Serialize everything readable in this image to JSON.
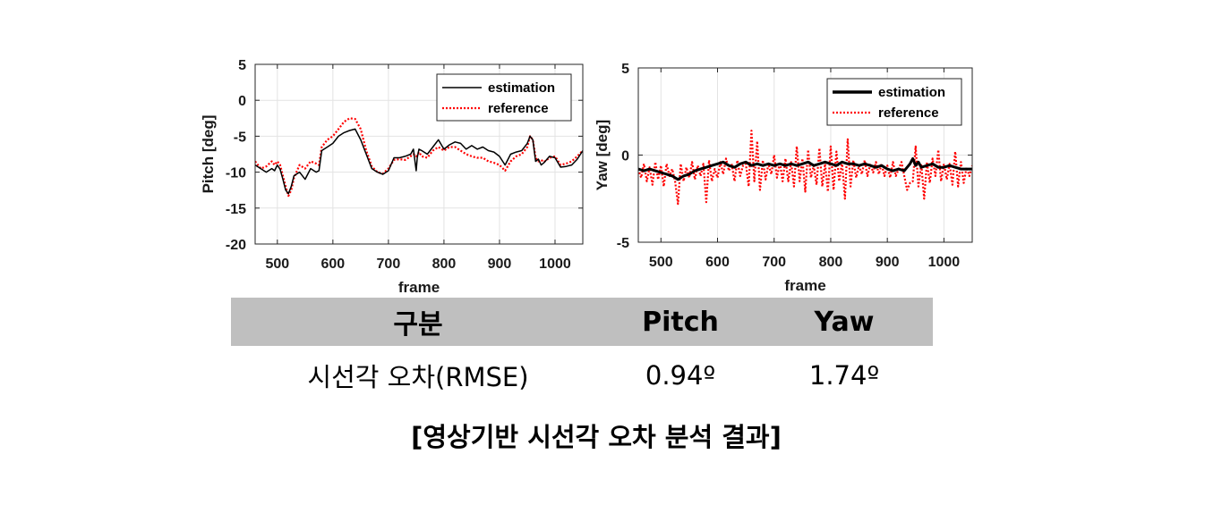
{
  "chart_data": [
    {
      "type": "line",
      "title": "",
      "xlabel": "frame",
      "ylabel": "Pitch [deg]",
      "xlim": [
        460,
        1050
      ],
      "ylim": [
        -20,
        5
      ],
      "xticks": [
        500,
        600,
        700,
        800,
        900,
        1000
      ],
      "yticks": [
        5,
        0,
        -5,
        -10,
        -15,
        -20
      ],
      "grid": true,
      "legend": "top-right",
      "series": [
        {
          "name": "estimation",
          "color": "#000000",
          "style": "solid",
          "x": [
            460,
            470,
            480,
            490,
            495,
            500,
            505,
            510,
            515,
            520,
            525,
            530,
            540,
            550,
            560,
            570,
            575,
            580,
            590,
            600,
            610,
            620,
            630,
            640,
            650,
            660,
            670,
            680,
            690,
            700,
            710,
            720,
            730,
            740,
            745,
            750,
            752,
            755,
            760,
            770,
            780,
            790,
            800,
            810,
            820,
            830,
            840,
            850,
            860,
            870,
            880,
            890,
            900,
            910,
            920,
            930,
            940,
            950,
            955,
            960,
            965,
            970,
            975,
            980,
            990,
            1000,
            1010,
            1020,
            1030,
            1040,
            1050
          ],
          "y": [
            -9,
            -9.5,
            -10,
            -9.5,
            -9.8,
            -9,
            -9.6,
            -11,
            -12.5,
            -13,
            -12,
            -10.5,
            -10,
            -11,
            -9.5,
            -10,
            -9.8,
            -7,
            -6.5,
            -6,
            -5,
            -4.5,
            -4.2,
            -4,
            -5.5,
            -7.5,
            -9.5,
            -10,
            -10.3,
            -9.8,
            -8,
            -8,
            -7.8,
            -7.5,
            -6.8,
            -9.8,
            -8,
            -6.8,
            -7,
            -7.5,
            -6.5,
            -5.5,
            -6.8,
            -6.2,
            -5.8,
            -6,
            -6.8,
            -6.3,
            -6.8,
            -6.5,
            -7,
            -7.2,
            -7.8,
            -9,
            -7.5,
            -7.2,
            -7,
            -6,
            -5,
            -5.5,
            -8.5,
            -8.2,
            -9,
            -8.7,
            -7.8,
            -8,
            -9.3,
            -9.2,
            -9,
            -8.2,
            -7
          ]
        },
        {
          "name": "reference",
          "color": "#ff0000",
          "style": "dotted",
          "x": [
            460,
            470,
            480,
            490,
            495,
            500,
            505,
            510,
            515,
            520,
            525,
            530,
            540,
            550,
            560,
            570,
            575,
            580,
            590,
            600,
            610,
            620,
            630,
            640,
            650,
            660,
            670,
            680,
            690,
            700,
            710,
            720,
            730,
            740,
            745,
            750,
            755,
            760,
            770,
            780,
            790,
            800,
            810,
            820,
            830,
            840,
            850,
            860,
            870,
            880,
            890,
            900,
            910,
            920,
            930,
            940,
            950,
            955,
            960,
            965,
            970,
            975,
            980,
            990,
            1000,
            1010,
            1020,
            1030,
            1040,
            1050
          ],
          "y": [
            -8.5,
            -9.5,
            -9.2,
            -8.5,
            -9,
            -8.5,
            -9,
            -10.5,
            -12,
            -13.3,
            -12.5,
            -10.8,
            -9,
            -9.5,
            -8.5,
            -8.8,
            -9,
            -6.5,
            -5.5,
            -5,
            -4,
            -3,
            -2.5,
            -2.6,
            -4,
            -7,
            -9.2,
            -10,
            -10.2,
            -9.5,
            -8.3,
            -8.2,
            -8.3,
            -7.8,
            -7.5,
            -7.8,
            -7.2,
            -7.8,
            -8,
            -7,
            -6.5,
            -7,
            -6.5,
            -6.5,
            -7,
            -7.5,
            -7.8,
            -8,
            -8,
            -8.5,
            -8.7,
            -9,
            -9.8,
            -8.5,
            -7.8,
            -7.5,
            -6.5,
            -5,
            -5.5,
            -8,
            -8.5,
            -8.3,
            -8.6,
            -8,
            -7.8,
            -9,
            -8.8,
            -8.5,
            -7.8,
            -7
          ]
        }
      ]
    },
    {
      "type": "line",
      "title": "",
      "xlabel": "frame",
      "ylabel": "Yaw [deg]",
      "xlim": [
        460,
        1050
      ],
      "ylim": [
        -5,
        5
      ],
      "xticks": [
        500,
        600,
        700,
        800,
        900,
        1000
      ],
      "yticks": [
        5,
        0,
        -5
      ],
      "grid": true,
      "legend": "top-right",
      "series": [
        {
          "name": "estimation",
          "color": "#000000",
          "style": "solid-thick",
          "x": [
            460,
            470,
            480,
            490,
            500,
            510,
            520,
            530,
            540,
            550,
            560,
            570,
            580,
            590,
            600,
            610,
            620,
            630,
            640,
            650,
            660,
            670,
            680,
            690,
            700,
            710,
            720,
            730,
            740,
            750,
            760,
            770,
            780,
            790,
            800,
            810,
            820,
            830,
            840,
            850,
            860,
            870,
            880,
            890,
            900,
            910,
            920,
            930,
            940,
            945,
            950,
            955,
            960,
            970,
            980,
            990,
            1000,
            1010,
            1020,
            1030,
            1040,
            1050
          ],
          "y": [
            -0.8,
            -0.9,
            -0.8,
            -0.9,
            -1,
            -1.1,
            -1.2,
            -1.4,
            -1.2,
            -1.1,
            -0.9,
            -0.8,
            -0.7,
            -0.6,
            -0.5,
            -0.4,
            -0.6,
            -0.7,
            -0.5,
            -0.4,
            -0.6,
            -0.5,
            -0.6,
            -0.5,
            -0.6,
            -0.5,
            -0.6,
            -0.5,
            -0.6,
            -0.5,
            -0.4,
            -0.6,
            -0.5,
            -0.4,
            -0.5,
            -0.6,
            -0.4,
            -0.5,
            -0.5,
            -0.6,
            -0.5,
            -0.6,
            -0.7,
            -0.6,
            -0.8,
            -0.9,
            -0.8,
            -0.9,
            -0.5,
            -0.2,
            -0.6,
            -0.4,
            -0.7,
            -0.6,
            -0.5,
            -0.7,
            -0.7,
            -0.6,
            -0.7,
            -0.8,
            -0.8,
            -0.8
          ]
        },
        {
          "name": "reference",
          "color": "#ff0000",
          "style": "dotted",
          "x": [
            460,
            465,
            470,
            475,
            480,
            485,
            490,
            495,
            500,
            505,
            510,
            515,
            520,
            525,
            530,
            535,
            540,
            545,
            550,
            555,
            560,
            565,
            570,
            575,
            580,
            585,
            590,
            595,
            600,
            605,
            610,
            615,
            620,
            625,
            630,
            635,
            640,
            645,
            650,
            655,
            660,
            665,
            670,
            675,
            680,
            685,
            690,
            695,
            700,
            705,
            710,
            715,
            720,
            725,
            730,
            735,
            740,
            745,
            750,
            755,
            760,
            765,
            770,
            775,
            780,
            785,
            790,
            795,
            800,
            805,
            810,
            815,
            820,
            825,
            830,
            835,
            840,
            845,
            850,
            855,
            860,
            865,
            870,
            875,
            880,
            885,
            890,
            895,
            900,
            905,
            910,
            915,
            920,
            925,
            930,
            935,
            940,
            945,
            950,
            955,
            960,
            965,
            970,
            975,
            980,
            985,
            990,
            995,
            1000,
            1005,
            1010,
            1015,
            1020,
            1025,
            1030,
            1035,
            1040,
            1045,
            1050
          ],
          "y": [
            -0.8,
            -1.3,
            -0.5,
            -1.5,
            -0.7,
            -1.7,
            -0.4,
            -1.4,
            -0.6,
            -1.8,
            -0.5,
            -1.2,
            -0.8,
            -1.5,
            -2.8,
            -0.5,
            -1.5,
            -0.7,
            -1.3,
            -0.4,
            -1.4,
            -0.6,
            -1.2,
            -0.5,
            -2.7,
            -0.3,
            -1.5,
            -0.8,
            -1.3,
            -0.4,
            -1.1,
            -0.2,
            -0.9,
            -0.5,
            -1.5,
            -0.3,
            -1.2,
            -0.6,
            -0.5,
            -1.8,
            1.4,
            -1.5,
            0.8,
            -2,
            -0.3,
            -1.4,
            -0.5,
            -1.1,
            0,
            -1.3,
            -0.4,
            -1.5,
            -0.2,
            -1.5,
            -0.4,
            -1.8,
            0.5,
            -1.5,
            -0.2,
            -2.1,
            0.3,
            -1.3,
            -0.6,
            -1.7,
            0.4,
            -1.8,
            -0.5,
            -2.1,
            0.5,
            -2,
            0.2,
            -1.5,
            -0.4,
            -2.5,
            0.9,
            -1.8,
            -0.3,
            -1.3,
            -0.6,
            -1.1,
            -0.3,
            -1.2,
            -0.5,
            -1.0,
            -0.4,
            -1.1,
            -0.5,
            -1.2,
            -0.6,
            -1.3,
            -0.4,
            -1.2,
            -0.8,
            -0.4,
            -1.2,
            -2.0,
            -1.6,
            -1.5,
            0.5,
            -1.8,
            -0.5,
            -2.5,
            -0.4,
            -1.6,
            -0.2,
            -1.2,
            0.3,
            -1.5,
            -0.5,
            -1.4,
            -0.5,
            -1.7,
            0.2,
            -1.8,
            -0.4,
            -1.6,
            -0.7,
            -1.2,
            -0.6
          ]
        }
      ]
    }
  ],
  "table": {
    "headers": [
      "구분",
      "Pitch",
      "Yaw"
    ],
    "rows": [
      [
        "시선각 오차(RMSE)",
        "0.94º",
        "1.74º"
      ]
    ]
  },
  "caption": "[영상기반 시선각 오차 분석 결과]"
}
